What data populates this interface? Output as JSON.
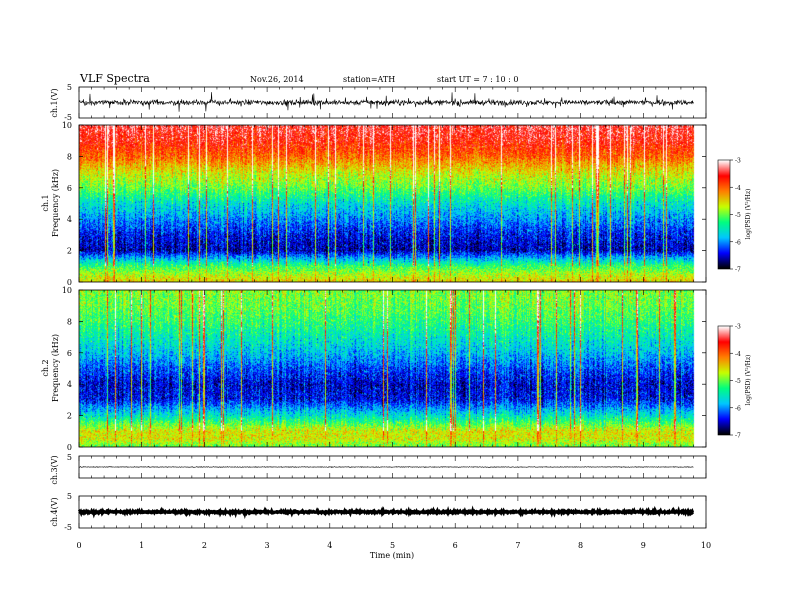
{
  "header": {
    "title": "VLF  Spectra",
    "date": "Nov.26, 2014",
    "station": "station=ATH",
    "start": "start  UT =   7 : 10 : 0"
  },
  "chart_data": [
    {
      "type": "line",
      "panel": "ch1-waveform",
      "ylabel": "ch.1(V)",
      "ylim": [
        -5,
        5
      ],
      "ytick_labels": [
        "5",
        "-5"
      ],
      "x_range_min": [
        0,
        9.8
      ],
      "baseline": 0,
      "noise_amplitude": 0.8
    },
    {
      "type": "heatmap",
      "panel": "ch1-spectrogram",
      "ylabel": "ch.1\nFrequency (kHz)",
      "ylim": [
        0,
        10
      ],
      "ytick_labels": [
        "0",
        "2",
        "4",
        "6",
        "8",
        "10"
      ],
      "colorbar": {
        "label": "log(PSD) (V²/Hz)",
        "range": [
          -7,
          -3
        ],
        "tick_labels": [
          "-3",
          "-4",
          "-5",
          "-6",
          "-7"
        ]
      },
      "x_range_min": [
        0,
        9.8
      ],
      "psd_profile_khz": [
        [
          0,
          -4.5
        ],
        [
          0.5,
          -4.8
        ],
        [
          1,
          -5.2
        ],
        [
          2,
          -6.6
        ],
        [
          3,
          -6.4
        ],
        [
          4,
          -6.0
        ],
        [
          5,
          -5.6
        ],
        [
          6,
          -5.0
        ],
        [
          7,
          -4.6
        ],
        [
          8,
          -4.0
        ],
        [
          9,
          -3.6
        ],
        [
          10,
          -3.4
        ]
      ]
    },
    {
      "type": "heatmap",
      "panel": "ch2-spectrogram",
      "ylabel": "ch.2\nFrequency (kHz)",
      "ylim": [
        0,
        10
      ],
      "ytick_labels": [
        "0",
        "2",
        "4",
        "6",
        "8",
        "10"
      ],
      "colorbar": {
        "label": "log(PSD) (V²/Hz)",
        "range": [
          -7,
          -3
        ],
        "tick_labels": [
          "-3",
          "-4",
          "-5",
          "-6",
          "-7"
        ]
      },
      "x_range_min": [
        0,
        9.8
      ],
      "psd_profile_khz": [
        [
          0,
          -5.0
        ],
        [
          0.5,
          -4.6
        ],
        [
          1,
          -4.6
        ],
        [
          2,
          -5.6
        ],
        [
          3,
          -6.4
        ],
        [
          4,
          -6.5
        ],
        [
          5,
          -6.2
        ],
        [
          6,
          -5.8
        ],
        [
          7,
          -5.5
        ],
        [
          8,
          -5.2
        ],
        [
          9,
          -5.0
        ],
        [
          10,
          -4.9
        ]
      ]
    },
    {
      "type": "line",
      "panel": "ch3-waveform",
      "ylabel": "ch.3(V)",
      "ylim": [
        -5,
        5
      ],
      "ytick_labels": [
        "5"
      ],
      "x_range_min": [
        0,
        9.8
      ],
      "baseline": 0,
      "noise_amplitude": 0.15
    },
    {
      "type": "line",
      "panel": "ch4-waveform",
      "ylabel": "ch.4(V)",
      "ylim": [
        -5,
        5
      ],
      "ytick_labels": [
        "5",
        "-5"
      ],
      "x_range_min": [
        0,
        9.8
      ],
      "baseline": 0,
      "noise_amplitude": 0.25
    }
  ],
  "xaxis": {
    "label": "Time  (min)",
    "range": [
      0,
      10
    ],
    "tick_labels": [
      "0",
      "1",
      "2",
      "3",
      "4",
      "5",
      "6",
      "7",
      "8",
      "9",
      "10"
    ]
  },
  "colors": {
    "colormap": [
      "#000000",
      "#0000ff",
      "#00c8ff",
      "#00ff80",
      "#c8ff00",
      "#ff8000",
      "#ff0000",
      "#ffffff"
    ],
    "axis": "#000000",
    "background": "#ffffff"
  }
}
